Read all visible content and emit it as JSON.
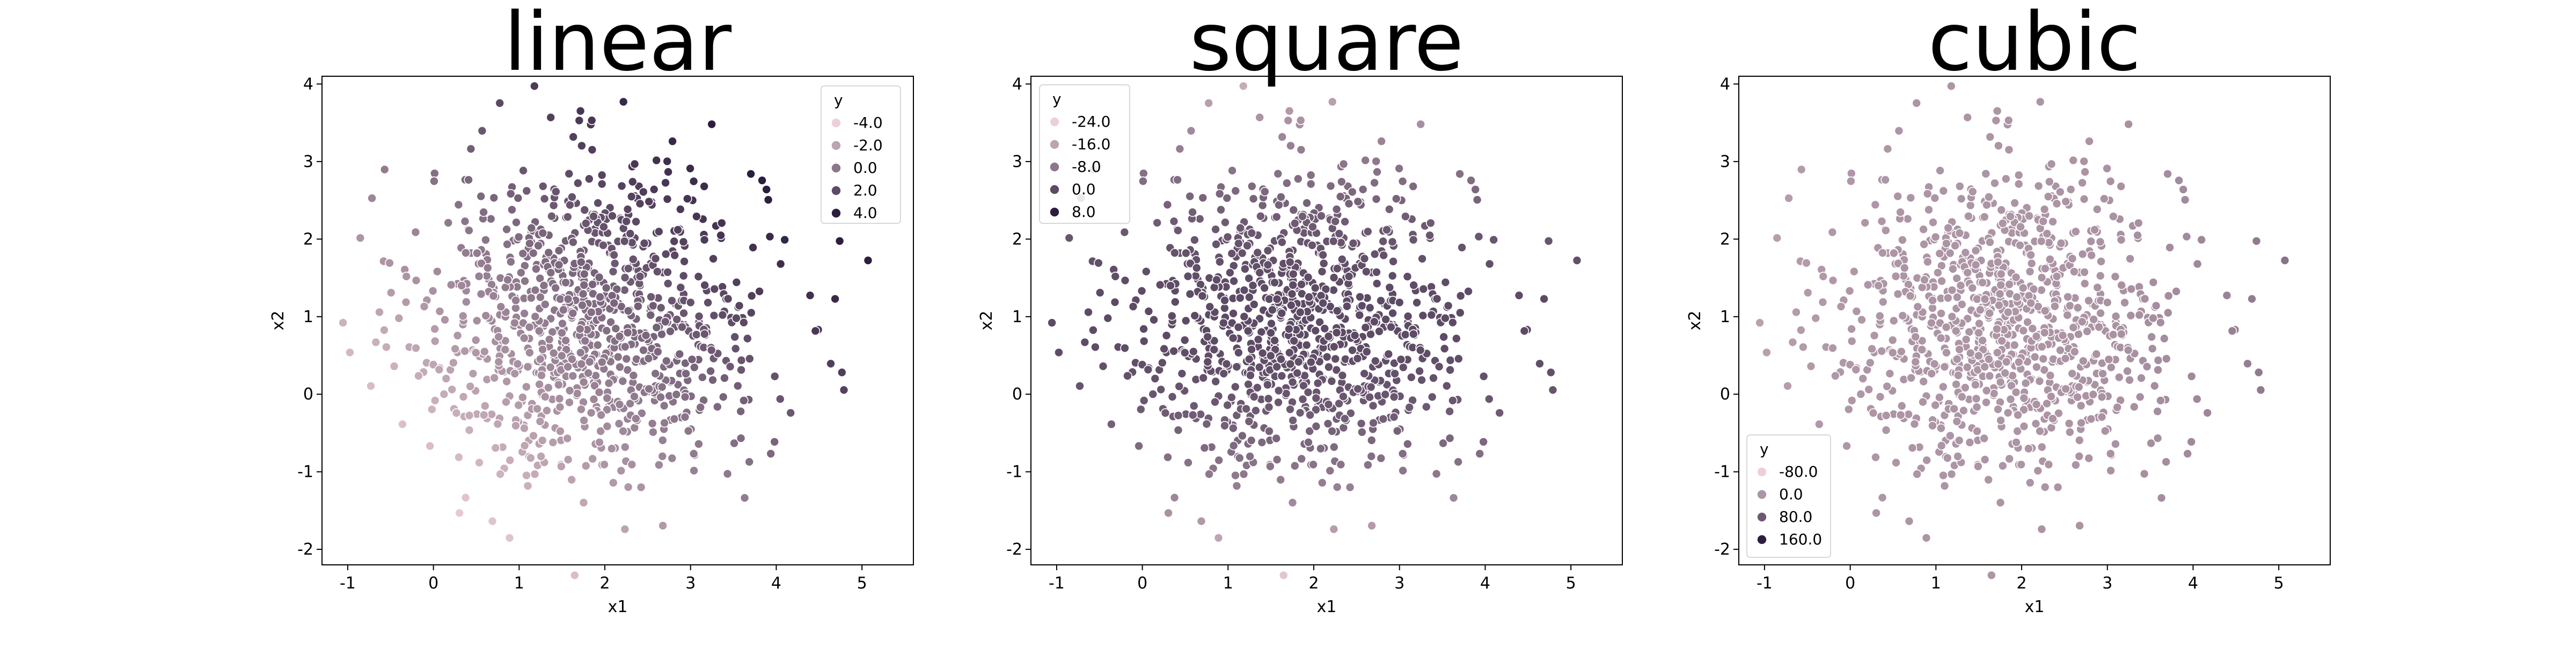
{
  "colors": {
    "palette_light": "#ecd0d8",
    "palette_dark": "#2d1e3e",
    "frame": "#000000",
    "point_edge": "#ffffff",
    "legend_edge": "#d8d8d8"
  },
  "chart_data": [
    {
      "type": "scatter",
      "title": "linear",
      "xlabel": "x1",
      "ylabel": "x2",
      "xlim": [
        -1.3,
        5.6
      ],
      "ylim": [
        -2.2,
        4.1
      ],
      "xticks": [
        -1,
        0,
        1,
        2,
        3,
        4,
        5
      ],
      "yticks": [
        -2,
        -1,
        0,
        1,
        2,
        3,
        4
      ],
      "grid": false,
      "hue_title": "y",
      "hue_range": [
        -4.0,
        4.0
      ],
      "hue_formula": "x1 + x2 - 2.5",
      "legend_placement": "top-right",
      "legend_entries": [
        {
          "label": "-4.0",
          "value": -4.0
        },
        {
          "label": "-2.0",
          "value": -2.0
        },
        {
          "label": "0.0",
          "value": 0.0
        },
        {
          "label": "2.0",
          "value": 2.0
        },
        {
          "label": "4.0",
          "value": 4.0
        }
      ],
      "point_count": 1000
    },
    {
      "type": "scatter",
      "title": "square",
      "xlabel": "x1",
      "ylabel": "x2",
      "xlim": [
        -1.3,
        5.6
      ],
      "ylim": [
        -2.2,
        4.1
      ],
      "xticks": [
        -1,
        0,
        1,
        2,
        3,
        4,
        5
      ],
      "yticks": [
        -2,
        -1,
        0,
        1,
        2,
        3,
        4
      ],
      "grid": false,
      "hue_title": "y",
      "hue_range": [
        -24.0,
        8.0
      ],
      "hue_formula": "-(x2 - 1)^2 * 2",
      "legend_placement": "top-left",
      "legend_entries": [
        {
          "label": "-24.0",
          "value": -24.0
        },
        {
          "label": "-16.0",
          "value": -16.0
        },
        {
          "label": "-8.0",
          "value": -8.0
        },
        {
          "label": "0.0",
          "value": 0.0
        },
        {
          "label": "8.0",
          "value": 8.0
        }
      ],
      "point_count": 1000
    },
    {
      "type": "scatter",
      "title": "cubic",
      "xlabel": "x1",
      "ylabel": "x2",
      "xlim": [
        -1.3,
        5.6
      ],
      "ylim": [
        -2.2,
        4.1
      ],
      "xticks": [
        -1,
        0,
        1,
        2,
        3,
        4,
        5
      ],
      "yticks": [
        -2,
        -1,
        0,
        1,
        2,
        3,
        4
      ],
      "grid": false,
      "hue_title": "y",
      "hue_range": [
        -80.0,
        160.0
      ],
      "hue_formula": "(x1 - 1.5)^3",
      "legend_placement": "bottom-left",
      "legend_entries": [
        {
          "label": "-80.0",
          "value": -80.0
        },
        {
          "label": "0.0",
          "value": 0.0
        },
        {
          "label": "80.0",
          "value": 80.0
        },
        {
          "label": "160.0",
          "value": 160.0
        }
      ],
      "point_count": 1000
    }
  ]
}
